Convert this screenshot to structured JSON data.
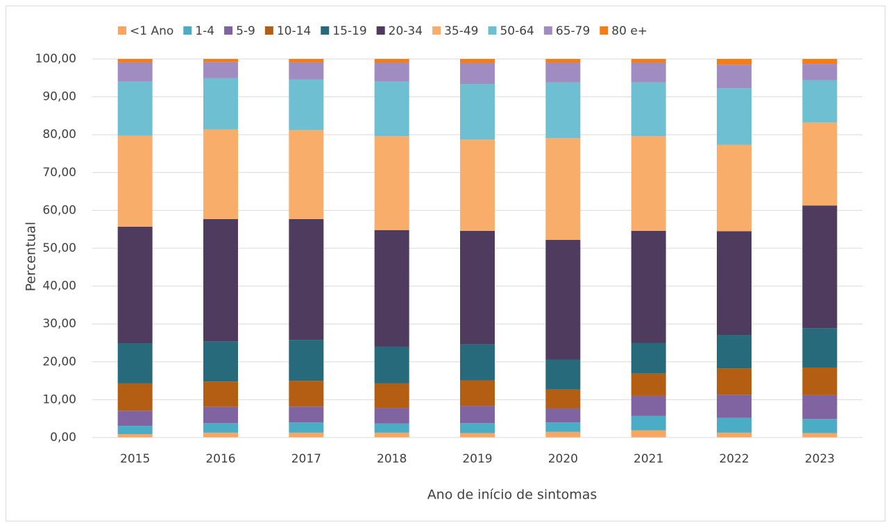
{
  "chart_data": {
    "type": "stacked_bar",
    "x_label": "Ano de início de sintomas",
    "y_label": "Percentual",
    "categories": [
      "2015",
      "2016",
      "2017",
      "2018",
      "2019",
      "2020",
      "2021",
      "2022",
      "2023"
    ],
    "series": [
      {
        "name": "<1 Ano",
        "color": "#f8a662",
        "values": [
          0.9,
          1.3,
          1.3,
          1.3,
          1.2,
          1.5,
          1.9,
          1.3,
          1.2
        ]
      },
      {
        "name": "1-4",
        "color": "#4bacc6",
        "values": [
          2.2,
          2.5,
          2.7,
          2.4,
          2.6,
          2.5,
          3.8,
          3.9,
          3.7
        ]
      },
      {
        "name": "5-9",
        "color": "#8064a2",
        "values": [
          4.0,
          4.3,
          4.2,
          4.1,
          4.6,
          3.7,
          5.3,
          6.1,
          6.3
        ]
      },
      {
        "name": "10-14",
        "color": "#b35e12",
        "values": [
          7.2,
          6.7,
          6.8,
          6.5,
          6.7,
          5.0,
          5.9,
          7.0,
          7.3
        ]
      },
      {
        "name": "15-19",
        "color": "#276a7c",
        "values": [
          10.6,
          10.6,
          10.8,
          9.7,
          9.5,
          7.9,
          8.1,
          8.8,
          10.4
        ]
      },
      {
        "name": "20-34",
        "color": "#4e3b5e",
        "values": [
          30.8,
          32.3,
          31.9,
          30.8,
          30.0,
          31.6,
          29.6,
          27.4,
          32.4
        ]
      },
      {
        "name": "35-49",
        "color": "#f9ad6a",
        "values": [
          24.0,
          23.7,
          23.5,
          24.8,
          24.1,
          26.9,
          25.0,
          22.8,
          21.9
        ]
      },
      {
        "name": "50-64",
        "color": "#6fbfd3",
        "values": [
          14.3,
          13.5,
          13.4,
          14.4,
          14.7,
          14.7,
          14.2,
          15.0,
          11.2
        ]
      },
      {
        "name": "65-79",
        "color": "#a08cc0",
        "values": [
          5.1,
          4.3,
          4.5,
          5.0,
          5.5,
          5.2,
          5.2,
          6.2,
          4.3
        ]
      },
      {
        "name": "80 e+",
        "color": "#f47d17",
        "values": [
          0.9,
          0.8,
          0.9,
          1.0,
          1.1,
          1.0,
          1.0,
          1.5,
          1.3
        ]
      }
    ],
    "ylim": [
      0,
      100
    ],
    "yticks": [
      {
        "value": 0,
        "label": "0,00"
      },
      {
        "value": 10,
        "label": "10,00"
      },
      {
        "value": 20,
        "label": "20,00"
      },
      {
        "value": 30,
        "label": "30,00"
      },
      {
        "value": 40,
        "label": "40,00"
      },
      {
        "value": 50,
        "label": "50,00"
      },
      {
        "value": 60,
        "label": "60,00"
      },
      {
        "value": 70,
        "label": "70,00"
      },
      {
        "value": 80,
        "label": "80,00"
      },
      {
        "value": 90,
        "label": "90,00"
      },
      {
        "value": 100,
        "label": "100,00"
      }
    ],
    "grid": true,
    "legend": "top"
  }
}
